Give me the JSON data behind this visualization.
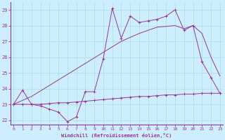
{
  "xlabel": "Windchill (Refroidissement éolien,°C)",
  "bg_color": "#cceeff",
  "grid_color": "#aadddd",
  "line_color": "#993399",
  "x_ticks": [
    0,
    1,
    2,
    3,
    4,
    5,
    6,
    7,
    8,
    9,
    10,
    11,
    12,
    13,
    14,
    15,
    16,
    17,
    18,
    19,
    20,
    21,
    22,
    23
  ],
  "y_ticks": [
    22,
    23,
    24,
    25,
    26,
    27,
    28,
    29
  ],
  "ylim": [
    21.7,
    29.5
  ],
  "xlim": [
    -0.3,
    23.3
  ],
  "series1_x": [
    0,
    1,
    2,
    3,
    4,
    5,
    6,
    7,
    8,
    9,
    10,
    11,
    12,
    13,
    14,
    15,
    16,
    17,
    18,
    19,
    20,
    21,
    22,
    23
  ],
  "series1_y": [
    23.0,
    23.0,
    23.0,
    23.0,
    23.05,
    23.1,
    23.1,
    23.15,
    23.2,
    23.25,
    23.3,
    23.35,
    23.4,
    23.45,
    23.5,
    23.5,
    23.55,
    23.6,
    23.6,
    23.65,
    23.65,
    23.7,
    23.7,
    23.7
  ],
  "series2_x": [
    0,
    2,
    4,
    6,
    8,
    10,
    12,
    14,
    16,
    18,
    19,
    20,
    21,
    22,
    23
  ],
  "series2_y": [
    23.0,
    23.5,
    24.2,
    24.9,
    25.6,
    26.3,
    27.0,
    27.5,
    27.9,
    28.0,
    27.8,
    28.0,
    27.5,
    26.0,
    24.8
  ],
  "series3_x": [
    0,
    1,
    2,
    3,
    4,
    5,
    6,
    7,
    8,
    9,
    10,
    11,
    12,
    13,
    14,
    15,
    16,
    17,
    18,
    19,
    20,
    21,
    22,
    23
  ],
  "series3_y": [
    23.0,
    23.9,
    23.0,
    22.9,
    22.7,
    22.5,
    21.9,
    22.2,
    23.8,
    23.8,
    25.9,
    29.1,
    27.2,
    28.6,
    28.2,
    28.3,
    28.4,
    28.6,
    29.0,
    27.7,
    28.0,
    25.7,
    24.7,
    23.7
  ]
}
